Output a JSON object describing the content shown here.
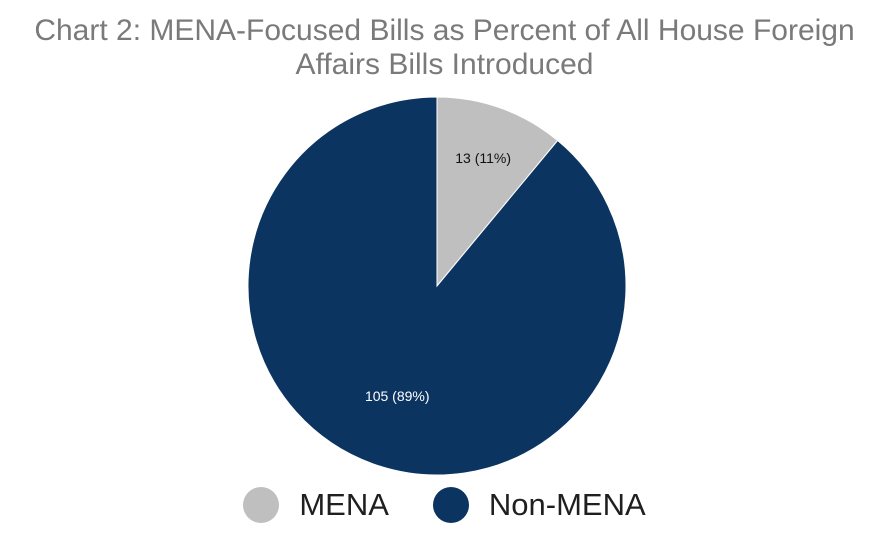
{
  "chart_data": {
    "type": "pie",
    "title": "Chart 2: MENA-Focused Bills as Percent of All House Foreign Affairs Bills Introduced",
    "title_lines": [
      "Chart 2: MENA-Focused Bills as Percent of All House Foreign",
      "Affairs Bills Introduced"
    ],
    "legend_position": "bottom",
    "slices": [
      {
        "name": "MENA",
        "value": 13,
        "percent": 11,
        "label": "13 (11%)",
        "color": "#bfbfbf",
        "label_color": "#111111"
      },
      {
        "name": "Non-MENA",
        "value": 105,
        "percent": 89,
        "label": "105 (89%)",
        "color": "#0b3461",
        "label_color": "#ffffff"
      }
    ]
  }
}
